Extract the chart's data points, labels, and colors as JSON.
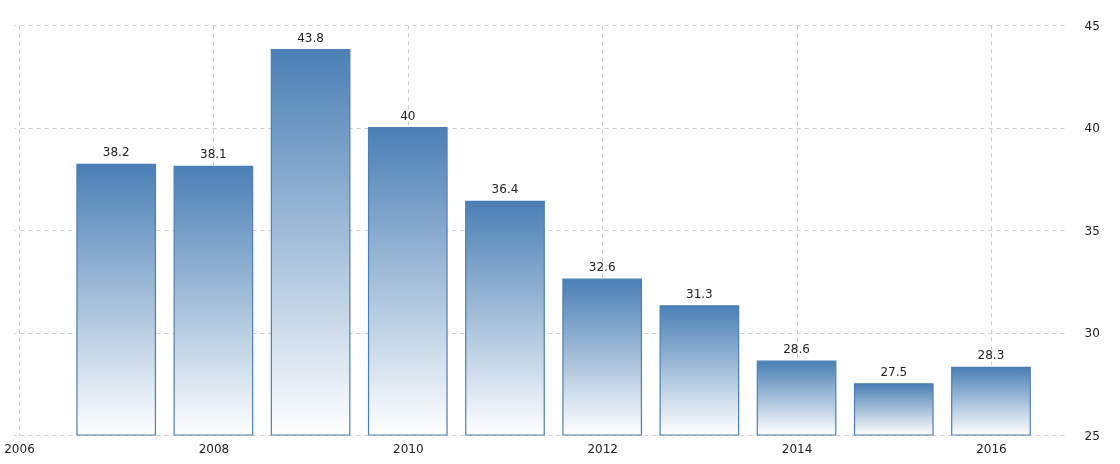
{
  "chart_data": {
    "type": "bar",
    "x": [
      2007,
      2008,
      2009,
      2010,
      2011,
      2012,
      2013,
      2014,
      2015,
      2016
    ],
    "values": [
      38.2,
      38.1,
      43.8,
      40,
      36.4,
      32.6,
      31.3,
      28.6,
      27.5,
      28.3
    ],
    "color": "#4a7fb5",
    "xlim": [
      2006,
      2016.7
    ],
    "xticks": [
      2006,
      2008,
      2010,
      2012,
      2014,
      2016
    ],
    "ylim": [
      25,
      45
    ],
    "yticks": [
      25,
      30,
      35,
      40,
      45
    ],
    "grid": true,
    "data_labels": true
  }
}
